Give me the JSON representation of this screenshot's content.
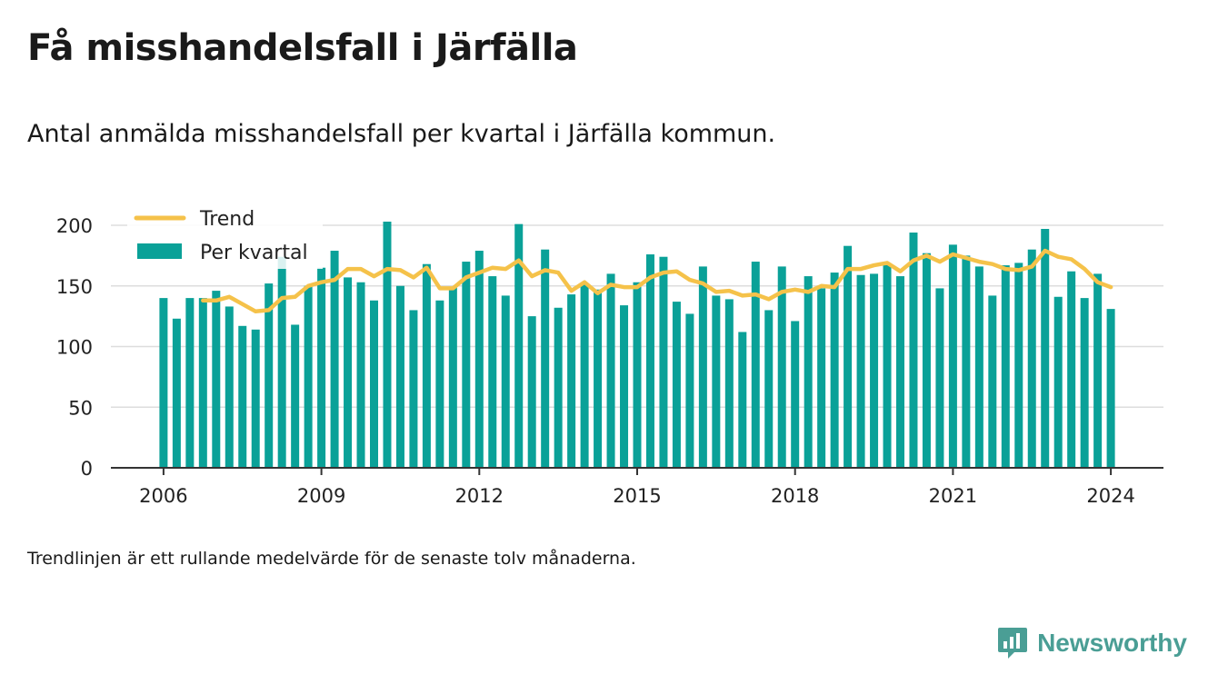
{
  "header": {
    "title": "Få misshandelsfall i Järfälla",
    "subtitle": "Antal anmälda misshandelsfall per kvartal i Järfälla kommun."
  },
  "footer": {
    "note": "Trendlinjen är ett rullande medelvärde för de senaste tolv månaderna.",
    "brand": "Newsworthy"
  },
  "colors": {
    "bar": "#0aa198",
    "trend": "#f5c24a",
    "grid": "#dddddd",
    "axis": "#333333",
    "brand": "#4a9e95"
  },
  "chart_data": {
    "type": "bar",
    "xlim": [
      2005.0,
      2025.0
    ],
    "ylim": [
      0,
      200
    ],
    "yticks": [
      0,
      50,
      100,
      150,
      200
    ],
    "xticks": [
      2006,
      2009,
      2012,
      2015,
      2018,
      2021,
      2024
    ],
    "grid": true,
    "legend_position": "top-left",
    "series": [
      {
        "name": "Per kvartal",
        "type": "bar",
        "x": [
          "2006Q1",
          "2006Q2",
          "2006Q3",
          "2006Q4",
          "2007Q1",
          "2007Q2",
          "2007Q3",
          "2007Q4",
          "2008Q1",
          "2008Q2",
          "2008Q3",
          "2008Q4",
          "2009Q1",
          "2009Q2",
          "2009Q3",
          "2009Q4",
          "2010Q1",
          "2010Q2",
          "2010Q3",
          "2010Q4",
          "2011Q1",
          "2011Q2",
          "2011Q3",
          "2011Q4",
          "2012Q1",
          "2012Q2",
          "2012Q3",
          "2012Q4",
          "2013Q1",
          "2013Q2",
          "2013Q3",
          "2013Q4",
          "2014Q1",
          "2014Q2",
          "2014Q3",
          "2014Q4",
          "2015Q1",
          "2015Q2",
          "2015Q3",
          "2015Q4",
          "2016Q1",
          "2016Q2",
          "2016Q3",
          "2016Q4",
          "2017Q1",
          "2017Q2",
          "2017Q3",
          "2017Q4",
          "2018Q1",
          "2018Q2",
          "2018Q3",
          "2018Q4",
          "2019Q1",
          "2019Q2",
          "2019Q3",
          "2019Q4",
          "2020Q1",
          "2020Q2",
          "2020Q3",
          "2020Q4",
          "2021Q1",
          "2021Q2",
          "2021Q3",
          "2021Q4",
          "2022Q1",
          "2022Q2",
          "2022Q3",
          "2022Q4",
          "2023Q1",
          "2023Q2",
          "2023Q3",
          "2023Q4",
          "2024Q1"
        ],
        "values": [
          140,
          123,
          140,
          140,
          146,
          133,
          117,
          114,
          152,
          174,
          118,
          150,
          165,
          179,
          157,
          153,
          138,
          203,
          150,
          130,
          168,
          138,
          149,
          170,
          179,
          158,
          142,
          201,
          125,
          180,
          132,
          143,
          152,
          147,
          160,
          134,
          153,
          176,
          174,
          137,
          127,
          166,
          142,
          139,
          112,
          170,
          130,
          166,
          121,
          158,
          148,
          161,
          183,
          159,
          160,
          168,
          158,
          194,
          177,
          148,
          184,
          175,
          166,
          142,
          167,
          169,
          180,
          197,
          141,
          162,
          140,
          160,
          131
        ]
      },
      {
        "name": "Trend",
        "type": "line",
        "x": [
          "2006Q4",
          "2007Q1",
          "2007Q2",
          "2007Q3",
          "2007Q4",
          "2008Q1",
          "2008Q2",
          "2008Q3",
          "2008Q4",
          "2009Q1",
          "2009Q2",
          "2009Q3",
          "2009Q4",
          "2010Q1",
          "2010Q2",
          "2010Q3",
          "2010Q4",
          "2011Q1",
          "2011Q2",
          "2011Q3",
          "2011Q4",
          "2012Q1",
          "2012Q2",
          "2012Q3",
          "2012Q4",
          "2013Q1",
          "2013Q2",
          "2013Q3",
          "2013Q4",
          "2014Q1",
          "2014Q2",
          "2014Q3",
          "2014Q4",
          "2015Q1",
          "2015Q2",
          "2015Q3",
          "2015Q4",
          "2016Q1",
          "2016Q2",
          "2016Q3",
          "2016Q4",
          "2017Q1",
          "2017Q2",
          "2017Q3",
          "2017Q4",
          "2018Q1",
          "2018Q2",
          "2018Q3",
          "2018Q4",
          "2019Q1",
          "2019Q2",
          "2019Q3",
          "2019Q4",
          "2020Q1",
          "2020Q2",
          "2020Q3",
          "2020Q4",
          "2021Q1",
          "2021Q2",
          "2021Q3",
          "2021Q4",
          "2022Q1",
          "2022Q2",
          "2022Q3",
          "2022Q4",
          "2023Q1",
          "2023Q2",
          "2023Q3",
          "2023Q4",
          "2024Q1"
        ],
        "values": [
          138,
          138,
          141,
          135,
          129,
          130,
          140,
          141,
          150,
          153,
          155,
          164,
          164,
          158,
          164,
          163,
          157,
          165,
          148,
          148,
          157,
          161,
          165,
          164,
          171,
          158,
          163,
          161,
          146,
          153,
          144,
          151,
          149,
          149,
          157,
          161,
          162,
          155,
          152,
          145,
          146,
          142,
          143,
          139,
          145,
          147,
          145,
          150,
          149,
          164,
          164,
          167,
          169,
          162,
          171,
          175,
          170,
          176,
          173,
          170,
          168,
          164,
          163,
          166,
          179,
          174,
          172,
          164,
          153,
          149
        ]
      }
    ]
  }
}
